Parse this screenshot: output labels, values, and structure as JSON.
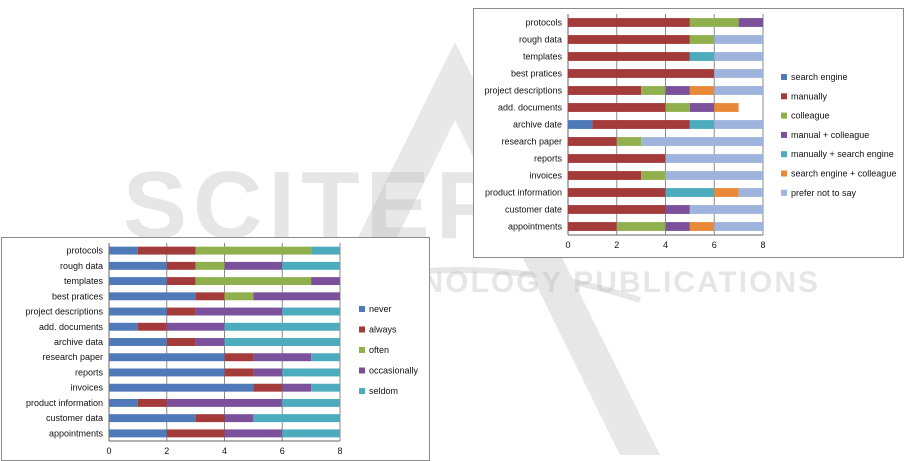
{
  "watermark": {
    "word1": "SCITEPRESS",
    "word2": "SCIENCE AND TECHNOLOGY PUBLICATIONS"
  },
  "chart_data": [
    {
      "type": "bar",
      "stacked": true,
      "orientation": "horizontal",
      "categories": [
        "protocols",
        "rough data",
        "templates",
        "best pratices",
        "project descriptions",
        "add. documents",
        "archive data",
        "research paper",
        "reports",
        "invoices",
        "product information",
        "customer data",
        "appointments"
      ],
      "series": [
        {
          "name": "never",
          "color": "#4f79b8",
          "values": [
            1,
            2,
            2,
            3,
            2,
            1,
            2,
            4,
            4,
            5,
            1,
            3,
            2
          ]
        },
        {
          "name": "always",
          "color": "#a33b3b",
          "values": [
            2,
            1,
            1,
            1,
            1,
            1,
            1,
            1,
            1,
            1,
            1,
            1,
            2
          ]
        },
        {
          "name": "often",
          "color": "#8fb04d",
          "values": [
            4,
            1,
            4,
            1,
            0,
            0,
            0,
            0,
            0,
            0,
            0,
            0,
            0
          ]
        },
        {
          "name": "occasionally",
          "color": "#7a519a",
          "values": [
            0,
            2,
            1,
            3,
            3,
            2,
            1,
            2,
            1,
            1,
            4,
            1,
            2
          ]
        },
        {
          "name": "seldom",
          "color": "#4cabbd",
          "values": [
            1,
            2,
            0,
            0,
            2,
            4,
            4,
            1,
            2,
            1,
            2,
            3,
            2
          ]
        }
      ],
      "xlim": [
        0,
        8
      ],
      "xticks": [
        0,
        2,
        4,
        6,
        8
      ],
      "grid": "vertical",
      "legend": "right"
    },
    {
      "type": "bar",
      "stacked": true,
      "orientation": "horizontal",
      "categories": [
        "protocols",
        "rough data",
        "templates",
        "best pratices",
        "project descriptions",
        "add. documents",
        "archive date",
        "research paper",
        "reports",
        "invoices",
        "product information",
        "customer date",
        "appointments"
      ],
      "series": [
        {
          "name": "search engine",
          "color": "#4f79b8",
          "values": [
            0,
            0,
            0,
            0,
            0,
            0,
            1,
            0,
            0,
            0,
            0,
            0,
            0
          ]
        },
        {
          "name": "manually",
          "color": "#a33b3b",
          "values": [
            5,
            5,
            5,
            6,
            3,
            4,
            4,
            2,
            4,
            3,
            4,
            4,
            2
          ]
        },
        {
          "name": "colleague",
          "color": "#8fb04d",
          "values": [
            2,
            1,
            0,
            0,
            1,
            1,
            0,
            1,
            0,
            1,
            0,
            0,
            2
          ]
        },
        {
          "name": "manual + colleague",
          "color": "#7a519a",
          "values": [
            1,
            0,
            0,
            0,
            1,
            1,
            0,
            0,
            0,
            0,
            0,
            1,
            1
          ]
        },
        {
          "name": "manually + search engine",
          "color": "#4cabbd",
          "values": [
            0,
            0,
            1,
            0,
            0,
            0,
            1,
            0,
            0,
            0,
            2,
            0,
            0
          ]
        },
        {
          "name": "search engine + colleague",
          "color": "#e8893a",
          "values": [
            0,
            0,
            0,
            0,
            1,
            1,
            0,
            0,
            0,
            0,
            1,
            0,
            1
          ]
        },
        {
          "name": "prefer not to say",
          "color": "#9fb4dc",
          "values": [
            0,
            2,
            2,
            2,
            2,
            0,
            2,
            5,
            4,
            4,
            1,
            3,
            2
          ]
        }
      ],
      "xlim": [
        0,
        8
      ],
      "xticks": [
        0,
        2,
        4,
        6,
        8
      ],
      "grid": "vertical",
      "legend": "right"
    }
  ]
}
